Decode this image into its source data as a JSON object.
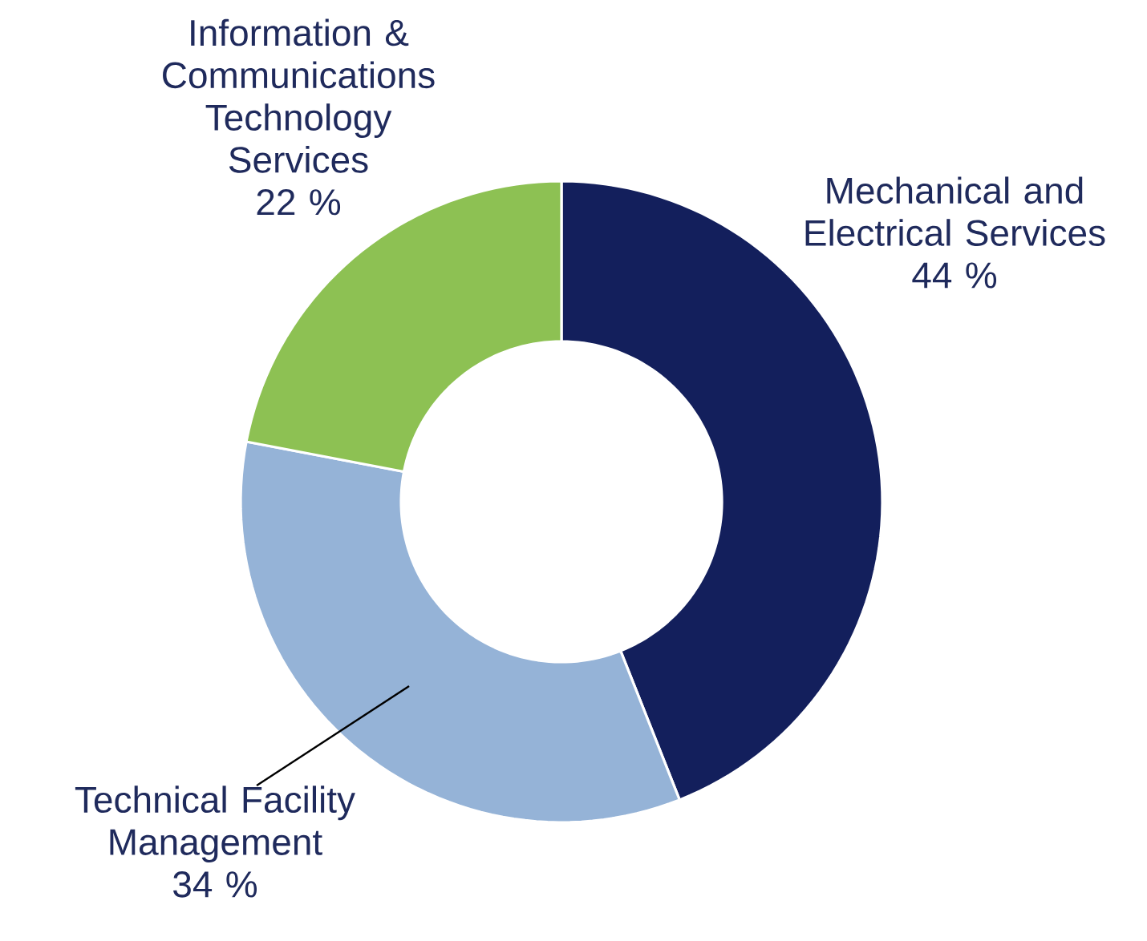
{
  "chart_data": {
    "type": "donut",
    "categories": [
      "Mechanical and Electrical Services",
      "Technical Facility Management",
      "Information & Communications Technology Services"
    ],
    "values": [
      44,
      34,
      22
    ],
    "value_labels": [
      "44 %",
      "34 %",
      "22 %"
    ],
    "colors": [
      "#131f5c",
      "#95b3d7",
      "#8dc153"
    ]
  }
}
